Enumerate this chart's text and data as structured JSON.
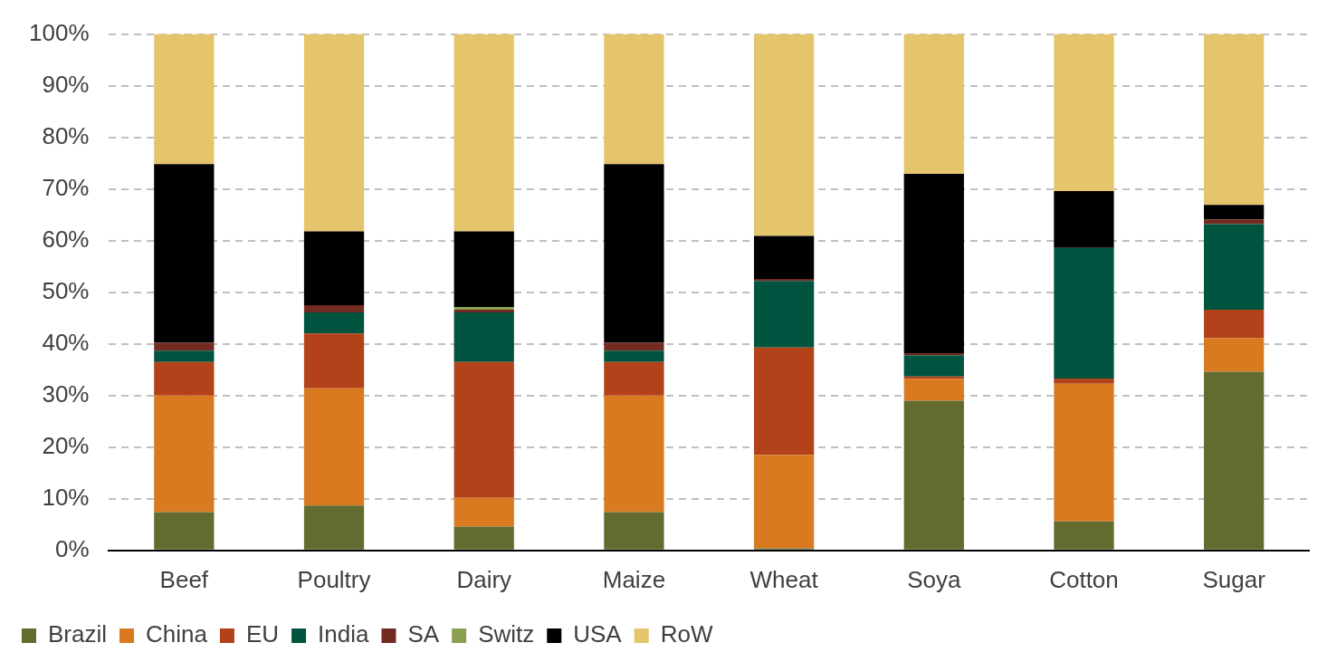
{
  "chart_data": {
    "type": "bar",
    "stacked": true,
    "categories": [
      "Beef",
      "Poultry",
      "Dairy",
      "Maize",
      "Wheat",
      "Soya",
      "Cotton",
      "Sugar"
    ],
    "series": [
      {
        "name": "Brazil",
        "color": "#636b2f",
        "values": [
          7.4,
          8.7,
          4.6,
          7.4,
          0.4,
          29.0,
          5.6,
          34.6
        ]
      },
      {
        "name": "China",
        "color": "#d97a20",
        "values": [
          22.6,
          22.7,
          5.6,
          22.6,
          18.1,
          4.2,
          26.7,
          6.5
        ]
      },
      {
        "name": "EU",
        "color": "#b3411a",
        "values": [
          6.5,
          10.6,
          26.3,
          6.5,
          20.8,
          0.5,
          1.0,
          5.5
        ]
      },
      {
        "name": "India",
        "color": "#00533e",
        "values": [
          2.2,
          4.1,
          9.6,
          2.2,
          12.9,
          4.1,
          25.3,
          16.6
        ]
      },
      {
        "name": "SA",
        "color": "#722b20",
        "values": [
          1.5,
          1.4,
          0.5,
          1.5,
          0.4,
          0.4,
          0,
          0.9
        ]
      },
      {
        "name": "Switz",
        "color": "#8aa050",
        "values": [
          0,
          0,
          0.5,
          0,
          0,
          0,
          0,
          0
        ]
      },
      {
        "name": "USA",
        "color": "#000000",
        "values": [
          34.6,
          14.3,
          14.7,
          34.6,
          8.3,
          34.7,
          11.0,
          2.8
        ]
      },
      {
        "name": "RoW",
        "color": "#e5c56b",
        "values": [
          25.2,
          38.2,
          38.2,
          25.2,
          39.1,
          27.1,
          30.4,
          33.1
        ]
      }
    ],
    "ylim": [
      0,
      100
    ],
    "yticks": [
      {
        "value": 0,
        "label": "0%"
      },
      {
        "value": 10,
        "label": "10%"
      },
      {
        "value": 20,
        "label": "20%"
      },
      {
        "value": 30,
        "label": "30%"
      },
      {
        "value": 40,
        "label": "40%"
      },
      {
        "value": 50,
        "label": "50%"
      },
      {
        "value": 60,
        "label": "60%"
      },
      {
        "value": 70,
        "label": "70%"
      },
      {
        "value": 80,
        "label": "80%"
      },
      {
        "value": 90,
        "label": "90%"
      },
      {
        "value": 100,
        "label": "100%"
      }
    ],
    "grid": "y",
    "legend": "bottom left"
  }
}
